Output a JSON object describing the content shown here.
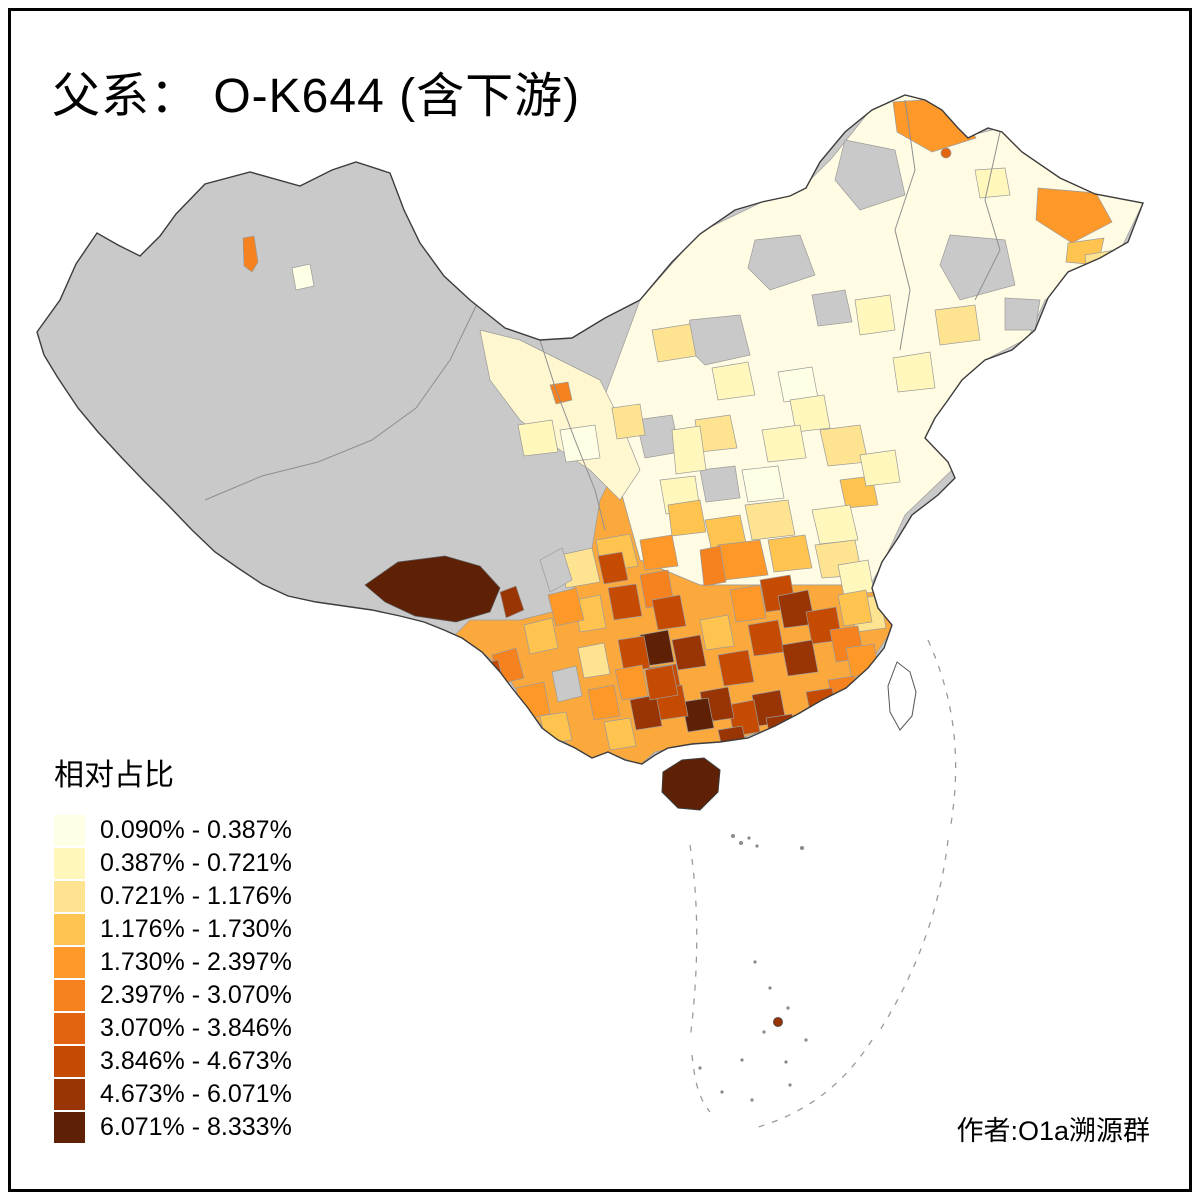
{
  "title": "父系： O-K644 (含下游)",
  "legend": {
    "title": "相对占比",
    "items": [
      {
        "label": "0.090% - 0.387%",
        "color": "#FFFFE5"
      },
      {
        "label": "0.387% - 0.721%",
        "color": "#FFF7BC"
      },
      {
        "label": "0.721% - 1.176%",
        "color": "#FEE391"
      },
      {
        "label": "1.176% - 1.730%",
        "color": "#FEC44F"
      },
      {
        "label": "1.730% - 2.397%",
        "color": "#FE9929"
      },
      {
        "label": "2.397% - 3.070%",
        "color": "#F5821F"
      },
      {
        "label": "3.070% - 3.846%",
        "color": "#E36410"
      },
      {
        "label": "3.846% - 4.673%",
        "color": "#C54B02"
      },
      {
        "label": "4.673% - 6.071%",
        "color": "#993404"
      },
      {
        "label": "6.071% - 8.333%",
        "color": "#5E2105"
      }
    ]
  },
  "attribution": "作者:O1a溯源群",
  "map": {
    "no_data_color": "#C9C9C9",
    "border_color": "#3C3C3C",
    "background": "#FFFFFF"
  }
}
